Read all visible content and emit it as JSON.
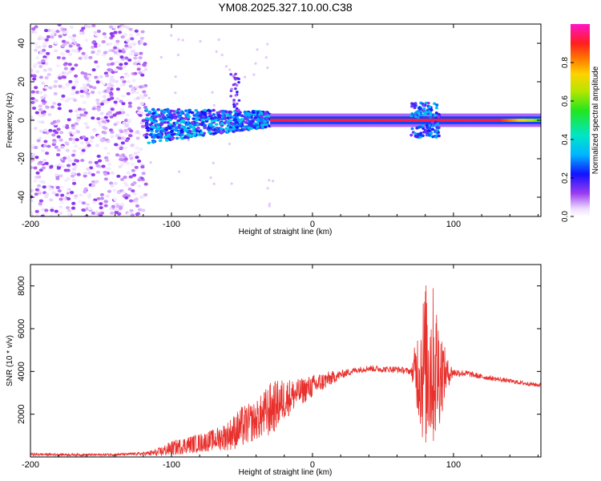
{
  "title": "YM08.2025.327.10.00.C38",
  "colors": {
    "snr_line": "#e8302c",
    "axis": "#000000",
    "background": "#ffffff"
  },
  "colorbar": {
    "label": "Normalized spectral amplitude",
    "ticks": [
      "0.0",
      "0.2",
      "0.4",
      "0.6",
      "0.8"
    ],
    "tick_values": [
      0.0,
      0.2,
      0.4,
      0.6,
      0.8
    ],
    "range": [
      0.0,
      1.0
    ],
    "colormap": "rainbow-magenta"
  },
  "chart_data": [
    {
      "type": "heatmap",
      "name": "spectrogram",
      "xlabel": "Height of straight line (km)",
      "ylabel": "Frequency (Hz)",
      "xlim": [
        -200,
        162
      ],
      "ylim": [
        -50,
        50
      ],
      "xticks": [
        "-200",
        "-100",
        "0",
        "100"
      ],
      "xtick_values": [
        -200,
        -100,
        0,
        100
      ],
      "yticks": [
        "-40",
        "-20",
        "0",
        "20",
        "40"
      ],
      "ytick_values": [
        -40,
        -20,
        0,
        20,
        40
      ],
      "regions": [
        {
          "label": "noise",
          "x_range": [
            -200,
            -118
          ],
          "freq_range": [
            -50,
            50
          ],
          "amplitude_range": [
            0.0,
            0.15
          ]
        },
        {
          "label": "onset",
          "x_range": [
            -118,
            -30
          ],
          "freq_range": [
            -10,
            10
          ],
          "amplitude_range": [
            0.15,
            0.4
          ]
        },
        {
          "label": "strong band",
          "x_range": [
            -30,
            162
          ],
          "freq_center": 0,
          "freq_halfwidth": 2,
          "amplitude_range": [
            0.7,
            1.0
          ]
        },
        {
          "label": "burst",
          "x_range": [
            70,
            90
          ],
          "freq_range": [
            -10,
            10
          ],
          "amplitude_range": [
            0.1,
            0.4
          ]
        }
      ]
    },
    {
      "type": "line",
      "name": "snr",
      "xlabel": "Height of straight line (km)",
      "ylabel": "SNR (10 * v/v)",
      "xlim": [
        -200,
        162
      ],
      "ylim": [
        0,
        9000
      ],
      "xticks": [
        "-200",
        "-100",
        "0",
        "100"
      ],
      "xtick_values": [
        -200,
        -100,
        0,
        100
      ],
      "yticks": [
        "2000",
        "4000",
        "6000",
        "8000"
      ],
      "ytick_values": [
        2000,
        4000,
        6000,
        8000
      ],
      "series": [
        {
          "name": "SNR",
          "x": [
            -200,
            -180,
            -160,
            -140,
            -120,
            -110,
            -100,
            -90,
            -80,
            -70,
            -60,
            -50,
            -40,
            -30,
            -20,
            -10,
            0,
            10,
            20,
            30,
            40,
            50,
            60,
            70,
            78,
            82,
            86,
            90,
            95,
            100,
            110,
            120,
            130,
            140,
            150,
            162
          ],
          "values": [
            120,
            110,
            100,
            110,
            150,
            200,
            400,
            550,
            650,
            800,
            1000,
            1400,
            1700,
            2200,
            2700,
            3000,
            3300,
            3600,
            3850,
            4050,
            4150,
            4100,
            4100,
            4000,
            4100,
            4400,
            4200,
            4000,
            3900,
            3950,
            3900,
            3750,
            3650,
            3550,
            3450,
            3350
          ],
          "noise_amplitude": [
            60,
            60,
            60,
            60,
            70,
            200,
            350,
            400,
            450,
            500,
            700,
            1000,
            900,
            1300,
            1000,
            650,
            550,
            400,
            200,
            150,
            150,
            150,
            150,
            150,
            3500,
            4200,
            3800,
            2600,
            800,
            200,
            150,
            120,
            110,
            100,
            100,
            100
          ]
        }
      ]
    }
  ]
}
